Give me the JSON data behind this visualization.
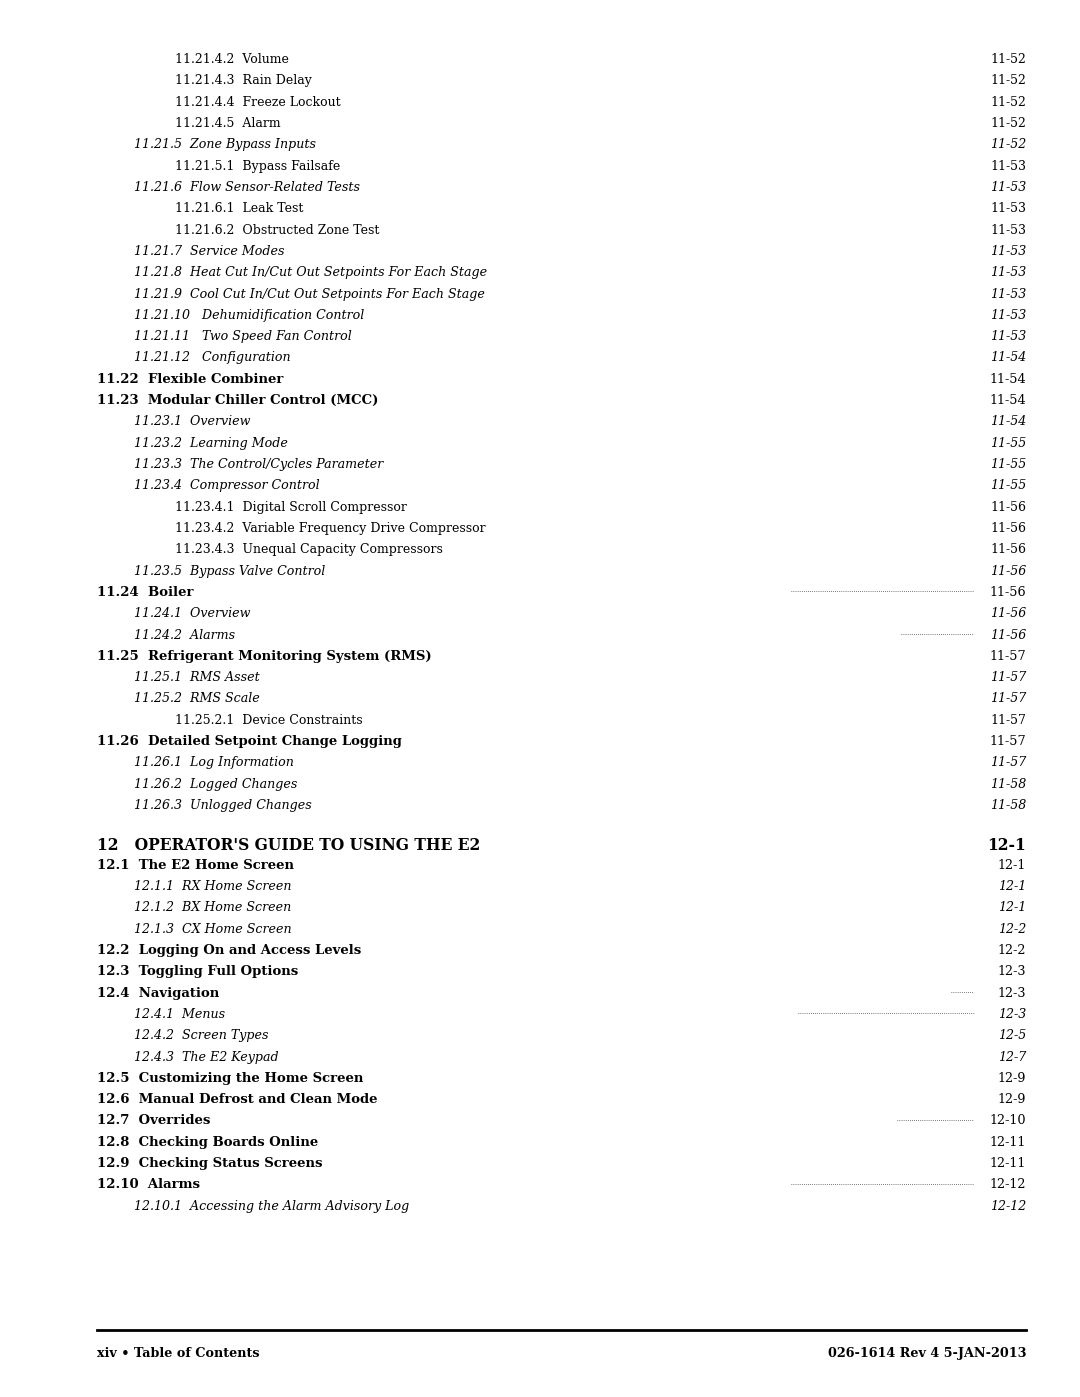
{
  "bg_color": "#ffffff",
  "text_color": "#000000",
  "page_width": 10.8,
  "page_height": 13.97,
  "footer_left": "xiv • Table of Contents",
  "footer_right": "026-1614 Rev 4 5-JAN-2013",
  "entries": [
    {
      "indent": 3,
      "text": "11.21.4.2  Volume",
      "page": "11-52",
      "style": "normal"
    },
    {
      "indent": 3,
      "text": "11.21.4.3  Rain Delay",
      "page": "11-52",
      "style": "normal"
    },
    {
      "indent": 3,
      "text": "11.21.4.4  Freeze Lockout",
      "page": "11-52",
      "style": "normal"
    },
    {
      "indent": 3,
      "text": "11.21.4.5  Alarm",
      "page": "11-52",
      "style": "normal"
    },
    {
      "indent": 2,
      "text": "11.21.5  Zone Bypass Inputs",
      "page": "11-52",
      "style": "italic"
    },
    {
      "indent": 3,
      "text": "11.21.5.1  Bypass Failsafe",
      "page": "11-53",
      "style": "normal"
    },
    {
      "indent": 2,
      "text": "11.21.6  Flow Sensor-Related Tests",
      "page": "11-53",
      "style": "italic"
    },
    {
      "indent": 3,
      "text": "11.21.6.1  Leak Test",
      "page": "11-53",
      "style": "normal"
    },
    {
      "indent": 3,
      "text": "11.21.6.2  Obstructed Zone Test",
      "page": "11-53",
      "style": "normal"
    },
    {
      "indent": 2,
      "text": "11.21.7  Service Modes",
      "page": "11-53",
      "style": "italic"
    },
    {
      "indent": 2,
      "text": "11.21.8  Heat Cut In/Cut Out Setpoints For Each Stage",
      "page": "11-53",
      "style": "italic"
    },
    {
      "indent": 2,
      "text": "11.21.9  Cool Cut In/Cut Out Setpoints For Each Stage",
      "page": "11-53",
      "style": "italic"
    },
    {
      "indent": 2,
      "text": "11.21.10   Dehumidification Control",
      "page": "11-53",
      "style": "italic"
    },
    {
      "indent": 2,
      "text": "11.21.11   Two Speed Fan Control",
      "page": "11-53",
      "style": "italic"
    },
    {
      "indent": 2,
      "text": "11.21.12   Configuration",
      "page": "11-54",
      "style": "italic"
    },
    {
      "indent": 1,
      "text": "11.22  Flexible Combiner",
      "page": "11-54",
      "style": "smallcaps"
    },
    {
      "indent": 1,
      "text": "11.23  Modular Chiller Control (MCC)",
      "page": "11-54",
      "style": "smallcaps"
    },
    {
      "indent": 2,
      "text": "11.23.1  Overview",
      "page": "11-54",
      "style": "italic"
    },
    {
      "indent": 2,
      "text": "11.23.2  Learning Mode",
      "page": "11-55",
      "style": "italic"
    },
    {
      "indent": 2,
      "text": "11.23.3  The Control/Cycles Parameter",
      "page": "11-55",
      "style": "italic"
    },
    {
      "indent": 2,
      "text": "11.23.4  Compressor Control",
      "page": "11-55",
      "style": "italic"
    },
    {
      "indent": 3,
      "text": "11.23.4.1  Digital Scroll Compressor",
      "page": "11-56",
      "style": "normal"
    },
    {
      "indent": 3,
      "text": "11.23.4.2  Variable Frequency Drive Compressor",
      "page": "11-56",
      "style": "normal"
    },
    {
      "indent": 3,
      "text": "11.23.4.3  Unequal Capacity Compressors",
      "page": "11-56",
      "style": "normal"
    },
    {
      "indent": 2,
      "text": "11.23.5  Bypass Valve Control",
      "page": "11-56",
      "style": "italic"
    },
    {
      "indent": 1,
      "text": "11.24  Boiler",
      "page": "11-56",
      "style": "smallcaps"
    },
    {
      "indent": 2,
      "text": "11.24.1  Overview",
      "page": "11-56",
      "style": "italic"
    },
    {
      "indent": 2,
      "text": "11.24.2  Alarms",
      "page": "11-56",
      "style": "italic"
    },
    {
      "indent": 1,
      "text": "11.25  Refrigerant Monitoring System (RMS)",
      "page": "11-57",
      "style": "smallcaps"
    },
    {
      "indent": 2,
      "text": "11.25.1  RMS Asset",
      "page": "11-57",
      "style": "italic"
    },
    {
      "indent": 2,
      "text": "11.25.2  RMS Scale",
      "page": "11-57",
      "style": "italic"
    },
    {
      "indent": 3,
      "text": "11.25.2.1  Device Constraints",
      "page": "11-57",
      "style": "normal"
    },
    {
      "indent": 1,
      "text": "11.26  Detailed Setpoint Change Logging",
      "page": "11-57",
      "style": "smallcaps"
    },
    {
      "indent": 2,
      "text": "11.26.1  Log Information",
      "page": "11-57",
      "style": "italic"
    },
    {
      "indent": 2,
      "text": "11.26.2  Logged Changes",
      "page": "11-58",
      "style": "italic"
    },
    {
      "indent": 2,
      "text": "11.26.3  Unlogged Changes",
      "page": "11-58",
      "style": "italic"
    },
    {
      "indent": 0,
      "text": "12   OPERATOR'S GUIDE TO USING THE E2",
      "page": "12-1",
      "style": "chapter"
    },
    {
      "indent": 1,
      "text": "12.1  The E2 Home Screen",
      "page": "12-1",
      "style": "smallcaps"
    },
    {
      "indent": 2,
      "text": "12.1.1  RX Home Screen",
      "page": "12-1",
      "style": "italic"
    },
    {
      "indent": 2,
      "text": "12.1.2  BX Home Screen",
      "page": "12-1",
      "style": "italic"
    },
    {
      "indent": 2,
      "text": "12.1.3  CX Home Screen",
      "page": "12-2",
      "style": "italic"
    },
    {
      "indent": 1,
      "text": "12.2  Logging On and Access Levels",
      "page": "12-2",
      "style": "smallcaps"
    },
    {
      "indent": 1,
      "text": "12.3  Toggling Full Options",
      "page": "12-3",
      "style": "smallcaps"
    },
    {
      "indent": 1,
      "text": "12.4  Navigation",
      "page": "12-3",
      "style": "smallcaps"
    },
    {
      "indent": 2,
      "text": "12.4.1  Menus",
      "page": "12-3",
      "style": "italic"
    },
    {
      "indent": 2,
      "text": "12.4.2  Screen Types",
      "page": "12-5",
      "style": "italic"
    },
    {
      "indent": 2,
      "text": "12.4.3  The E2 Keypad",
      "page": "12-7",
      "style": "italic"
    },
    {
      "indent": 1,
      "text": "12.5  Customizing the Home Screen",
      "page": "12-9",
      "style": "smallcaps"
    },
    {
      "indent": 1,
      "text": "12.6  Manual Defrost and Clean Mode",
      "page": "12-9",
      "style": "smallcaps"
    },
    {
      "indent": 1,
      "text": "12.7  Overrides",
      "page": "12-10",
      "style": "smallcaps"
    },
    {
      "indent": 1,
      "text": "12.8  Checking Boards Online",
      "page": "12-11",
      "style": "smallcaps"
    },
    {
      "indent": 1,
      "text": "12.9  Checking Status Screens",
      "page": "12-11",
      "style": "smallcaps"
    },
    {
      "indent": 1,
      "text": "12.10  Alarms",
      "page": "12-12",
      "style": "smallcaps"
    },
    {
      "indent": 2,
      "text": "12.10.1  Accessing the Alarm Advisory Log",
      "page": "12-12",
      "style": "italic"
    }
  ]
}
